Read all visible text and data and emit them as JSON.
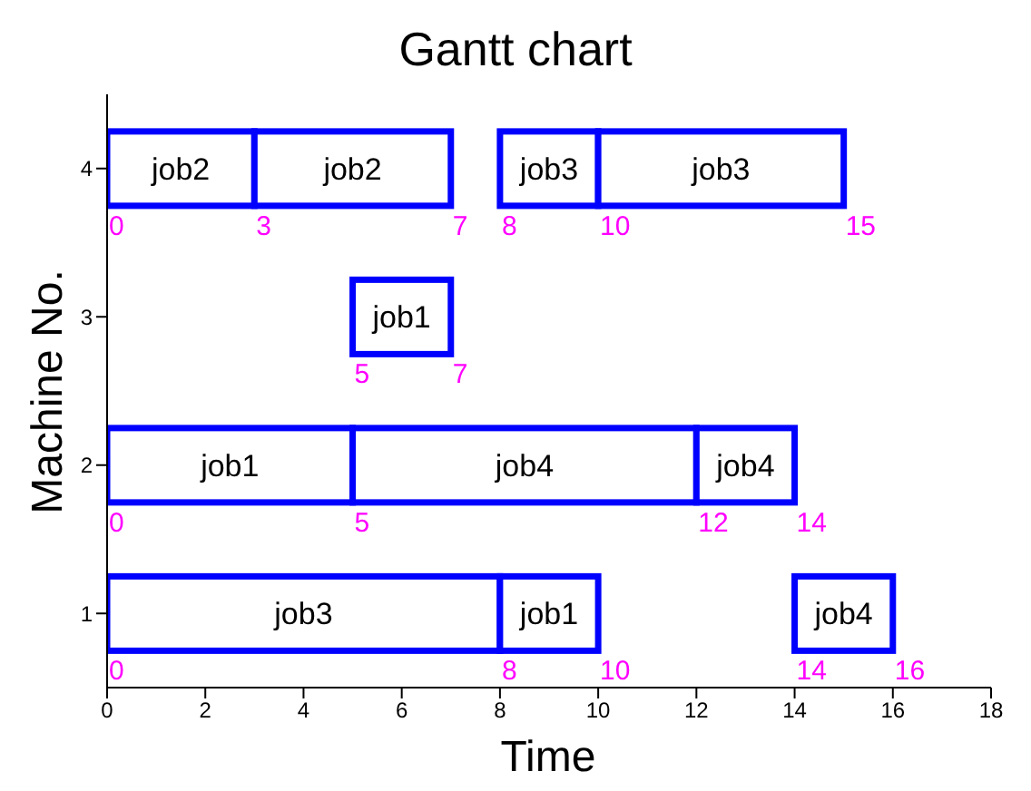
{
  "chart_data": {
    "type": "bar",
    "orientation": "horizontal",
    "title": "Gantt chart",
    "xlabel": "Time",
    "ylabel": "Machine No.",
    "categories": [
      "4",
      "3",
      "2",
      "1"
    ],
    "series": [
      {
        "color": "#0000ff",
        "base": [
          0,
          5,
          0,
          0
        ],
        "values": [
          3,
          2,
          5,
          8
        ],
        "value_labels": [
          "job2",
          "job1",
          "job1",
          "job3"
        ]
      },
      {
        "color": "#0000ff",
        "base": [
          3,
          null,
          5,
          8
        ],
        "values": [
          4,
          null,
          7,
          2
        ],
        "value_labels": [
          "job2",
          null,
          "job4",
          "job1"
        ]
      },
      {
        "color": "#0000ff",
        "base": [
          8,
          null,
          12,
          14
        ],
        "values": [
          2,
          null,
          2,
          2
        ],
        "value_labels": [
          "job3",
          null,
          "job4",
          "job4"
        ]
      },
      {
        "color": "#0000ff",
        "base": [
          10,
          null,
          null,
          null
        ],
        "values": [
          5,
          null,
          null,
          null
        ],
        "value_labels": [
          "job3",
          null,
          null,
          null
        ]
      }
    ],
    "xlim": [
      0,
      18
    ],
    "xticks": [
      0,
      2,
      4,
      6,
      8,
      10,
      12,
      14,
      16,
      18
    ],
    "grid": false,
    "legend": false,
    "annotations": [
      {
        "text": "0",
        "x": 0,
        "y": "4"
      },
      {
        "text": "3",
        "x": 3,
        "y": "4"
      },
      {
        "text": "7",
        "x": 7,
        "y": "4"
      },
      {
        "text": "8",
        "x": 8,
        "y": "4"
      },
      {
        "text": "10",
        "x": 10,
        "y": "4"
      },
      {
        "text": "15",
        "x": 15,
        "y": "4"
      },
      {
        "text": "5",
        "x": 5,
        "y": "3"
      },
      {
        "text": "7",
        "x": 7,
        "y": "3"
      },
      {
        "text": "0",
        "x": 0,
        "y": "2"
      },
      {
        "text": "5",
        "x": 5,
        "y": "2"
      },
      {
        "text": "12",
        "x": 12,
        "y": "2"
      },
      {
        "text": "14",
        "x": 14,
        "y": "2"
      },
      {
        "text": "0",
        "x": 0,
        "y": "1"
      },
      {
        "text": "8",
        "x": 8,
        "y": "1"
      },
      {
        "text": "10",
        "x": 10,
        "y": "1"
      },
      {
        "text": "14",
        "x": 14,
        "y": "1"
      },
      {
        "text": "16",
        "x": 16,
        "y": "1"
      }
    ]
  }
}
